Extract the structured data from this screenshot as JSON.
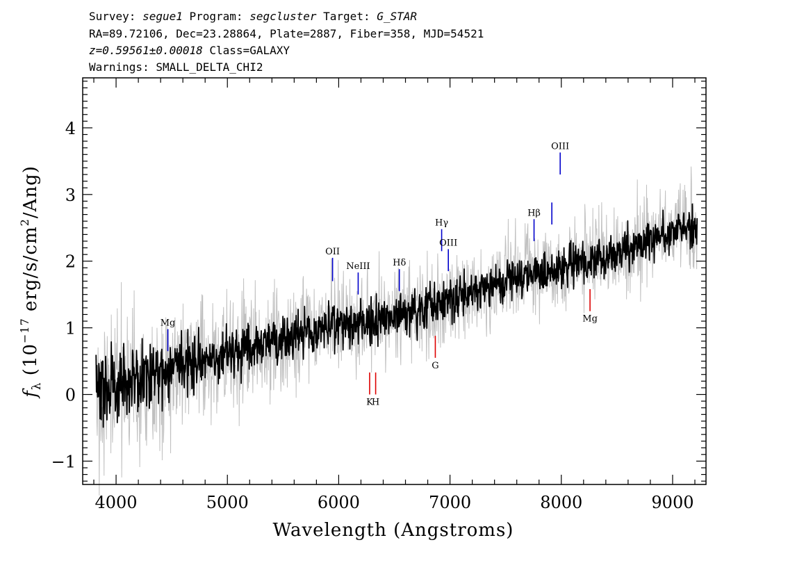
{
  "header": {
    "line1": {
      "survey_label": "Survey: ",
      "survey": "segue1",
      "program_label": " Program: ",
      "program": "segcluster",
      "target_label": " Target: ",
      "target": "G_STAR"
    },
    "line2": "RA=89.72106, Dec=23.28864, Plate=2887, Fiber=358, MJD=54521",
    "line3": {
      "redshift": "z=0.59561±0.00018",
      "class": " Class=GALAXY"
    },
    "line4": "Warnings: SMALL_DELTA_CHI2"
  },
  "chart_data": {
    "type": "line",
    "xlabel": "Wavelength (Angstroms)",
    "ylabel_parts": {
      "symbol": "f",
      "subscript": "λ",
      "open": " (10",
      "exponent": "−17",
      "units_a": " erg/s/cm",
      "units_exp": "2",
      "units_b": "/Ang)"
    },
    "xlim": [
      3700,
      9300
    ],
    "ylim": [
      -1.35,
      4.75
    ],
    "x_ticks": [
      4000,
      5000,
      6000,
      7000,
      8000,
      9000
    ],
    "x_tick_labels": [
      "4000",
      "5000",
      "6000",
      "7000",
      "8000",
      "9000"
    ],
    "y_ticks": [
      -1,
      0,
      1,
      2,
      3,
      4
    ],
    "y_tick_labels": [
      "−1",
      "0",
      "1",
      "2",
      "3",
      "4"
    ],
    "x_range_data": [
      3820,
      9220
    ],
    "series": [
      {
        "role": "model",
        "color": "#000000",
        "x": [
          3820,
          4000,
          4250,
          4500,
          4750,
          5000,
          5250,
          5500,
          5750,
          6000,
          6250,
          6500,
          6750,
          7000,
          7250,
          7500,
          7750,
          8000,
          8250,
          8500,
          8750,
          9000,
          9220
        ],
        "y": [
          0.05,
          0.15,
          0.28,
          0.38,
          0.48,
          0.62,
          0.72,
          0.82,
          0.95,
          1.05,
          1.12,
          1.2,
          1.28,
          1.42,
          1.55,
          1.72,
          1.82,
          1.9,
          2.0,
          2.1,
          2.28,
          2.45,
          2.5
        ]
      },
      {
        "role": "flux-noise",
        "color": "#c0c0c0",
        "x": [
          3820,
          4500,
          5000,
          6000,
          7000,
          8000,
          9220
        ],
        "y": [
          0.9,
          0.65,
          0.55,
          0.5,
          0.45,
          0.45,
          0.45
        ]
      }
    ],
    "lines": [
      {
        "label": "Mg",
        "x": 4465,
        "y0": 0.65,
        "y1": 0.98,
        "color": "#0000cc",
        "label_pos": "above"
      },
      {
        "label": "OII",
        "x": 5945,
        "y0": 1.7,
        "y1": 2.05,
        "color": "#0000cc",
        "label_pos": "above"
      },
      {
        "label": "NeIII",
        "x": 6175,
        "y0": 1.5,
        "y1": 1.83,
        "color": "#0000cc",
        "label_pos": "above"
      },
      {
        "label": "Hδ",
        "x": 6545,
        "y0": 1.55,
        "y1": 1.88,
        "color": "#0000cc",
        "label_pos": "above"
      },
      {
        "label": "Hγ",
        "x": 6925,
        "y0": 2.15,
        "y1": 2.48,
        "color": "#0000cc",
        "label_pos": "above"
      },
      {
        "label": "OIII",
        "x": 6985,
        "y0": 1.85,
        "y1": 2.18,
        "color": "#0000cc",
        "label_pos": "above"
      },
      {
        "label": "Hβ",
        "x": 7755,
        "y0": 2.3,
        "y1": 2.63,
        "color": "#0000cc",
        "label_pos": "above"
      },
      {
        "label": "",
        "x": 7915,
        "y0": 2.55,
        "y1": 2.88,
        "color": "#0000cc",
        "label_pos": "none"
      },
      {
        "label": "OIII",
        "x": 7990,
        "y0": 3.3,
        "y1": 3.63,
        "color": "#0000cc",
        "label_pos": "above"
      },
      {
        "label": "K",
        "x": 6278,
        "y0": 0.0,
        "y1": 0.33,
        "color": "#dd0000",
        "label_pos": "below"
      },
      {
        "label": "H",
        "x": 6332,
        "y0": 0.0,
        "y1": 0.33,
        "color": "#dd0000",
        "label_pos": "below"
      },
      {
        "label": "G",
        "x": 6868,
        "y0": 0.55,
        "y1": 0.88,
        "color": "#dd0000",
        "label_pos": "below"
      },
      {
        "label": "Mg",
        "x": 8258,
        "y0": 1.25,
        "y1": 1.58,
        "color": "#dd0000",
        "label_pos": "below"
      }
    ]
  }
}
